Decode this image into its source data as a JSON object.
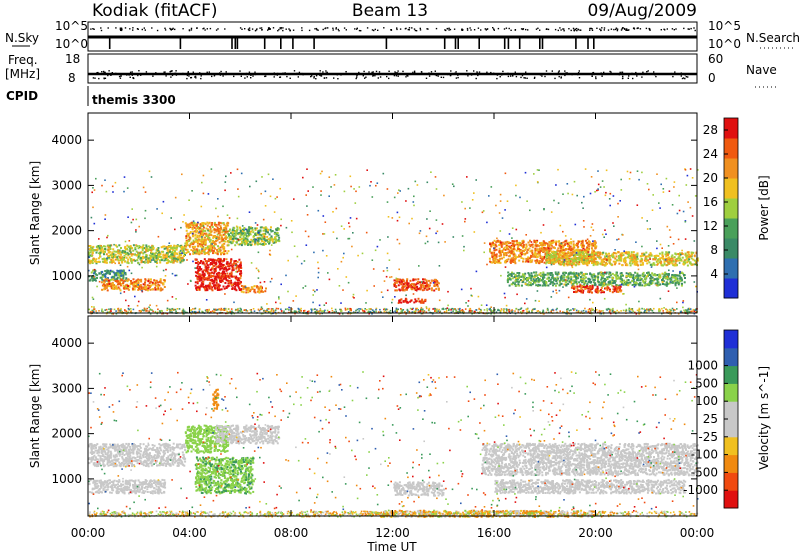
{
  "header": {
    "station": "Kodiak (fitACF)",
    "beam": "Beam 13",
    "date": "09/Aug/2009"
  },
  "summary": {
    "nsky_label": "N.Sky",
    "nsearch_label": "N.Search",
    "noise_ticks": [
      "10^5",
      "10^0"
    ],
    "freq_label": "Freq.",
    "freq_unit": "[MHz]",
    "freq_ticks": [
      "18",
      "8"
    ],
    "nave_label": "Nave",
    "nave_ticks": [
      "60",
      "0"
    ],
    "cpid_label": "CPID",
    "cpid_value": "themis 3300"
  },
  "colors": {
    "power": [
      "#1f2fd6",
      "#2f6fb0",
      "#3a8a66",
      "#4aa05a",
      "#9fcf3f",
      "#f0c020",
      "#f09020",
      "#f05a10",
      "#e01010"
    ],
    "velocity": [
      "#e01010",
      "#f04a10",
      "#f08a10",
      "#f0c020",
      "#c8c8c8",
      "#c8c8c8",
      "#8ad24a",
      "#3a9a5a",
      "#2f5fb0",
      "#1f2fd6"
    ]
  },
  "chart_data": [
    {
      "type": "heatmap",
      "title": "",
      "xlabel": "Time UT",
      "ylabel": "Slant Range [km]",
      "xlim": [
        "00:00",
        "24:00"
      ],
      "ylim": [
        180,
        4600
      ],
      "x_ticks": [
        "00:00",
        "04:00",
        "08:00",
        "12:00",
        "16:00",
        "20:00",
        "00:00"
      ],
      "y_ticks": [
        1000,
        2000,
        3000,
        4000
      ],
      "colorbar": {
        "label": "Power [dB]",
        "ticks": [
          4,
          8,
          12,
          16,
          20,
          24,
          28
        ],
        "range": [
          0,
          30
        ]
      },
      "regions": [
        {
          "t": [
            0.0,
            3.8
          ],
          "r": [
            1300,
            1700
          ],
          "value": 16
        },
        {
          "t": [
            0.0,
            1.5
          ],
          "r": [
            900,
            1150
          ],
          "value": 10
        },
        {
          "t": [
            0.5,
            3.0
          ],
          "r": [
            700,
            950
          ],
          "value": 22
        },
        {
          "t": [
            3.8,
            5.5
          ],
          "r": [
            1500,
            2200
          ],
          "value": 20
        },
        {
          "t": [
            4.2,
            6.0
          ],
          "r": [
            700,
            1400
          ],
          "value": 28
        },
        {
          "t": [
            5.5,
            7.5
          ],
          "r": [
            1700,
            2100
          ],
          "value": 14
        },
        {
          "t": [
            6.0,
            7.0
          ],
          "r": [
            650,
            800
          ],
          "value": 22
        },
        {
          "t": [
            12.0,
            13.8
          ],
          "r": [
            700,
            950
          ],
          "value": 26
        },
        {
          "t": [
            12.2,
            13.3
          ],
          "r": [
            420,
            520
          ],
          "value": 28
        },
        {
          "t": [
            15.8,
            20.0
          ],
          "r": [
            1300,
            1800
          ],
          "value": 22
        },
        {
          "t": [
            18.0,
            24.0
          ],
          "r": [
            1250,
            1550
          ],
          "value": 18
        },
        {
          "t": [
            16.5,
            23.5
          ],
          "r": [
            800,
            1100
          ],
          "value": 12
        },
        {
          "t": [
            19.0,
            21.0
          ],
          "r": [
            650,
            800
          ],
          "value": 26
        }
      ]
    },
    {
      "type": "heatmap",
      "title": "",
      "xlabel": "Time UT",
      "ylabel": "Slant Range [km]",
      "xlim": [
        "00:00",
        "24:00"
      ],
      "ylim": [
        180,
        4600
      ],
      "x_ticks": [
        "00:00",
        "04:00",
        "08:00",
        "12:00",
        "16:00",
        "20:00",
        "00:00"
      ],
      "y_ticks": [
        1000,
        2000,
        3000,
        4000
      ],
      "colorbar": {
        "label": "Velocity [m s^-1]",
        "ticks": [
          -1000,
          -500,
          -100,
          -25,
          25,
          100,
          500,
          1000
        ]
      },
      "regions": [
        {
          "t": [
            0.0,
            3.8
          ],
          "r": [
            1300,
            1800
          ],
          "value": 0
        },
        {
          "t": [
            0.0,
            3.0
          ],
          "r": [
            700,
            1000
          ],
          "value": 0
        },
        {
          "t": [
            3.8,
            5.5
          ],
          "r": [
            1600,
            2200
          ],
          "value": 300
        },
        {
          "t": [
            4.2,
            6.5
          ],
          "r": [
            700,
            1500
          ],
          "value": 400
        },
        {
          "t": [
            5.0,
            7.5
          ],
          "r": [
            1800,
            2200
          ],
          "value": 0
        },
        {
          "t": [
            4.9,
            5.1
          ],
          "r": [
            2500,
            3000
          ],
          "value": -300
        },
        {
          "t": [
            12.0,
            14.0
          ],
          "r": [
            650,
            950
          ],
          "value": 0
        },
        {
          "t": [
            15.5,
            24.0
          ],
          "r": [
            1100,
            1800
          ],
          "value": 0
        },
        {
          "t": [
            16.0,
            23.5
          ],
          "r": [
            700,
            1000
          ],
          "value": 0
        },
        {
          "t": [
            11.0,
            20.0
          ],
          "r": [
            180,
            320
          ],
          "value": -60
        }
      ]
    }
  ]
}
